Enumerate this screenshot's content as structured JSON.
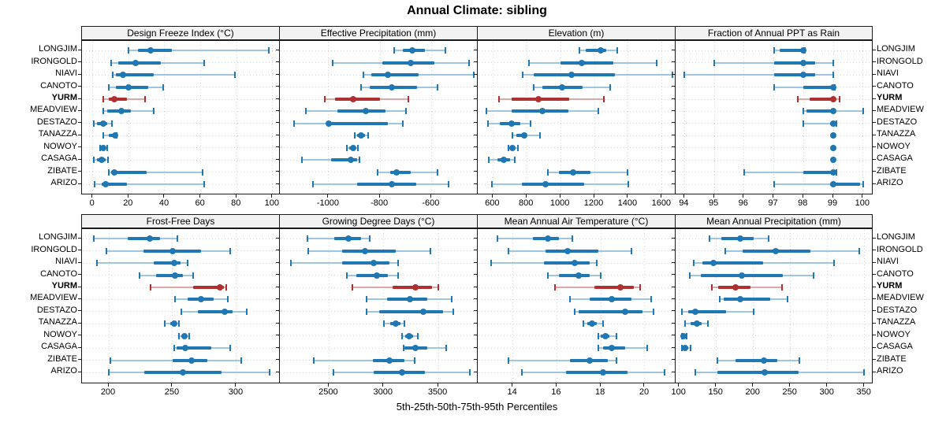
{
  "title": "Annual Climate: sibling",
  "footer": "5th-25th-50th-75th-95th Percentiles",
  "colors": {
    "series": "#1f77b4",
    "series_light": "#9ec6e0",
    "highlight": "#b03030",
    "highlight_light": "#dfa8a8",
    "grid": "#d2d2d2",
    "header_bg": "#f2f2f2",
    "border": "#1a1a1a"
  },
  "chart_data": {
    "type": "scatter",
    "style": "five-number-summary-intervals",
    "layout": "2x4-trellis",
    "grid": "dotted",
    "title": "Annual Climate: sibling",
    "caption": "5th-25th-50th-75th-95th Percentiles",
    "percentile_labels": [
      "5th",
      "25th",
      "50th",
      "75th",
      "95th"
    ],
    "sites": [
      "LONGJIM",
      "IRONGOLD",
      "NIAVI",
      "CANOTO",
      "YURM",
      "MEADVIEW",
      "DESTAZO",
      "TANAZZA",
      "NOWOY",
      "CASAGA",
      "ZIBATE",
      "ARIZO"
    ],
    "highlight_site": "YURM",
    "panels": [
      {
        "title": "Design Freeze Index (°C)",
        "xlim": [
          -6,
          104
        ],
        "xticks": [
          0,
          20,
          40,
          60,
          80,
          100
        ],
        "values": [
          [
            20,
            25,
            32,
            44,
            98
          ],
          [
            10,
            14,
            24,
            38,
            62
          ],
          [
            11,
            13,
            17,
            34,
            79
          ],
          [
            9,
            13,
            20,
            31,
            39
          ],
          [
            6,
            9,
            12,
            19,
            29
          ],
          [
            6,
            8,
            16,
            21,
            34
          ],
          [
            0.5,
            2.5,
            6,
            8,
            10.5
          ],
          [
            6,
            9,
            12.5,
            13,
            13.5
          ],
          [
            4,
            5,
            6,
            7,
            8
          ],
          [
            0.5,
            2.5,
            5,
            7,
            8.5
          ],
          [
            9,
            10,
            12,
            30,
            61
          ],
          [
            1,
            5,
            7,
            19,
            62
          ]
        ]
      },
      {
        "title": "Effective Precipitation (mm)",
        "xlim": [
          -1190,
          -420
        ],
        "xticks": [
          -1000,
          -800,
          -600
        ],
        "values": [
          [
            -745,
            -710,
            -675,
            -625,
            -545
          ],
          [
            -985,
            -790,
            -680,
            -590,
            -455
          ],
          [
            -865,
            -835,
            -770,
            -650,
            -435
          ],
          [
            -875,
            -840,
            -755,
            -655,
            -575
          ],
          [
            -1015,
            -975,
            -905,
            -800,
            -690
          ],
          [
            -1090,
            -965,
            -855,
            -780,
            -700
          ],
          [
            -1135,
            -1005,
            -1000,
            -770,
            -710
          ],
          [
            -900,
            -890,
            -875,
            -860,
            -845
          ],
          [
            -930,
            -920,
            -905,
            -895,
            -885
          ],
          [
            -1105,
            -990,
            -915,
            -890,
            -880
          ],
          [
            -810,
            -760,
            -735,
            -680,
            -575
          ],
          [
            -1060,
            -890,
            -755,
            -660,
            -535
          ]
        ]
      },
      {
        "title": "Elevation (m)",
        "xlim": [
          510,
          1680
        ],
        "xticks": [
          600,
          800,
          1000,
          1200,
          1400,
          1600
        ],
        "values": [
          [
            1110,
            1150,
            1235,
            1270,
            1335
          ],
          [
            815,
            1000,
            1125,
            1310,
            1570
          ],
          [
            775,
            840,
            1065,
            1320,
            1660
          ],
          [
            840,
            890,
            1010,
            1130,
            1295
          ],
          [
            635,
            710,
            870,
            1050,
            1255
          ],
          [
            560,
            710,
            890,
            1045,
            1225
          ],
          [
            570,
            640,
            710,
            760,
            820
          ],
          [
            715,
            740,
            785,
            800,
            880
          ],
          [
            690,
            700,
            715,
            730,
            750
          ],
          [
            575,
            625,
            665,
            700,
            730
          ],
          [
            925,
            990,
            1075,
            1175,
            1395
          ],
          [
            595,
            770,
            910,
            1140,
            1400
          ]
        ]
      },
      {
        "title": "Fraction of Annual PPT as Rain",
        "xlim": [
          93.7,
          100.35
        ],
        "xticks": [
          94,
          95,
          96,
          97,
          98,
          99,
          100
        ],
        "values": [
          [
            97,
            97.2,
            98,
            98,
            98.05
          ],
          [
            95,
            97,
            98,
            98.4,
            99
          ],
          [
            94,
            97,
            98,
            98.4,
            99
          ],
          [
            97,
            98,
            99,
            99,
            99.05
          ],
          [
            97.8,
            98.2,
            99,
            99.05,
            99.2
          ],
          [
            98,
            98.1,
            99,
            99.05,
            100
          ],
          [
            98,
            98.9,
            99,
            99.05,
            99.1
          ],
          [
            99,
            99,
            99,
            99,
            99
          ],
          [
            99,
            99,
            99,
            99,
            99
          ],
          [
            99,
            99,
            99,
            99,
            99
          ],
          [
            96,
            98,
            99,
            99,
            99.1
          ],
          [
            97,
            98.9,
            99,
            99.9,
            100
          ]
        ]
      },
      {
        "title": "Frost-Free Days",
        "xlim": [
          179,
          334
        ],
        "xticks": [
          200,
          250,
          300
        ],
        "values": [
          [
            188,
            215,
            232,
            240,
            254
          ],
          [
            198,
            227,
            250,
            272,
            295
          ],
          [
            191,
            235,
            251,
            256,
            262
          ],
          [
            224,
            237,
            252,
            258,
            266
          ],
          [
            233,
            266,
            287,
            290,
            292
          ],
          [
            252,
            262,
            272,
            282,
            293
          ],
          [
            257,
            270,
            291,
            297,
            308
          ],
          [
            244,
            248,
            251,
            253,
            255
          ],
          [
            255,
            257,
            259,
            261,
            263
          ],
          [
            251,
            253,
            260,
            280,
            295
          ],
          [
            201,
            250,
            265,
            277,
            304
          ],
          [
            200,
            228,
            258,
            288,
            326
          ]
        ]
      },
      {
        "title": "Growing Degree Days (°C)",
        "xlim": [
          2050,
          3860
        ],
        "xticks": [
          2500,
          3000,
          3500
        ],
        "values": [
          [
            2300,
            2550,
            2680,
            2790,
            2870
          ],
          [
            2310,
            2620,
            2830,
            3110,
            3430
          ],
          [
            2150,
            2620,
            2910,
            3050,
            3130
          ],
          [
            2660,
            2750,
            2940,
            3040,
            3130
          ],
          [
            2710,
            3080,
            3290,
            3440,
            3500
          ],
          [
            2840,
            3030,
            3240,
            3400,
            3620
          ],
          [
            2840,
            2960,
            3360,
            3540,
            3640
          ],
          [
            3000,
            3060,
            3110,
            3150,
            3190
          ],
          [
            3170,
            3200,
            3230,
            3270,
            3310
          ],
          [
            3180,
            3190,
            3290,
            3400,
            3570
          ],
          [
            2360,
            2900,
            3050,
            3190,
            3280
          ],
          [
            2540,
            2910,
            3170,
            3380,
            3790
          ]
        ]
      },
      {
        "title": "Mean Annual Air Temperature (°C)",
        "xlim": [
          12.4,
          21.4
        ],
        "xticks": [
          14,
          16,
          18,
          20
        ],
        "values": [
          [
            13.3,
            14.9,
            15.6,
            16.1,
            16.7
          ],
          [
            13.8,
            15.5,
            16.5,
            17.9,
            19.4
          ],
          [
            13.0,
            15.4,
            16.8,
            17.5,
            17.8
          ],
          [
            15.6,
            16.1,
            17.0,
            17.5,
            18.0
          ],
          [
            15.9,
            17.7,
            18.9,
            19.5,
            19.8
          ],
          [
            16.6,
            17.5,
            18.5,
            19.4,
            20.3
          ],
          [
            16.8,
            17.0,
            19.1,
            19.9,
            20.4
          ],
          [
            17.2,
            17.4,
            17.6,
            17.8,
            18.1
          ],
          [
            17.9,
            18.0,
            18.2,
            18.4,
            18.7
          ],
          [
            17.9,
            18.1,
            18.5,
            19.1,
            20.1
          ],
          [
            13.8,
            16.6,
            17.5,
            18.3,
            18.7
          ],
          [
            14.4,
            16.4,
            18.1,
            19.2,
            20.9
          ]
        ]
      },
      {
        "title": "Mean Annual Precipitation (mm)",
        "xlim": [
          95,
          362
        ],
        "xticks": [
          100,
          150,
          200,
          250,
          300,
          350
        ],
        "values": [
          [
            141,
            157,
            182,
            200,
            221
          ],
          [
            162,
            185,
            230,
            277,
            343
          ],
          [
            119,
            131,
            146,
            213,
            309
          ],
          [
            114,
            129,
            184,
            240,
            281
          ],
          [
            144,
            152,
            176,
            196,
            239
          ],
          [
            155,
            160,
            182,
            223,
            246
          ],
          [
            104,
            112,
            122,
            163,
            200
          ],
          [
            108,
            115,
            124,
            130,
            139
          ],
          [
            103,
            104,
            106,
            108,
            110
          ],
          [
            104,
            105,
            108,
            112,
            115
          ],
          [
            151,
            176,
            214,
            232,
            262
          ],
          [
            122,
            151,
            215,
            261,
            349
          ]
        ]
      }
    ]
  }
}
